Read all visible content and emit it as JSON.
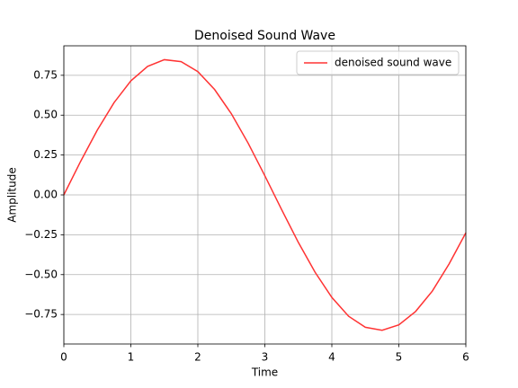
{
  "chart_data": {
    "type": "line",
    "title": "Denoised Sound Wave",
    "x_label": "Time",
    "y_label": "Amplitude",
    "x": [
      0,
      0.25,
      0.5,
      0.75,
      1,
      1.25,
      1.5,
      1.75,
      2,
      2.25,
      2.5,
      2.75,
      3,
      3.25,
      3.5,
      3.75,
      4,
      4.25,
      4.5,
      4.75,
      5,
      5.25,
      5.5,
      5.75,
      6
    ],
    "series": [
      {
        "name": "denoised sound wave",
        "color": "#ff3333",
        "values": [
          0,
          0.21,
          0.407,
          0.579,
          0.715,
          0.806,
          0.848,
          0.836,
          0.773,
          0.661,
          0.509,
          0.325,
          0.12,
          -0.092,
          -0.298,
          -0.485,
          -0.643,
          -0.761,
          -0.83,
          -0.849,
          -0.815,
          -0.731,
          -0.603,
          -0.433,
          -0.238
        ]
      }
    ],
    "xlim": [
      0,
      6
    ],
    "xticks": [
      0,
      1,
      2,
      3,
      4,
      5,
      6
    ],
    "ylim": [
      -0.935,
      0.935
    ],
    "yticks": [
      {
        "value": -0.75,
        "label": "−0.75"
      },
      {
        "value": -0.5,
        "label": "−0.50"
      },
      {
        "value": -0.25,
        "label": "−0.25"
      },
      {
        "value": 0,
        "label": "0.00"
      },
      {
        "value": 0.25,
        "label": "0.25"
      },
      {
        "value": 0.5,
        "label": "0.50"
      },
      {
        "value": 0.75,
        "label": "0.75"
      }
    ],
    "grid": true,
    "legend": "upper-right"
  }
}
